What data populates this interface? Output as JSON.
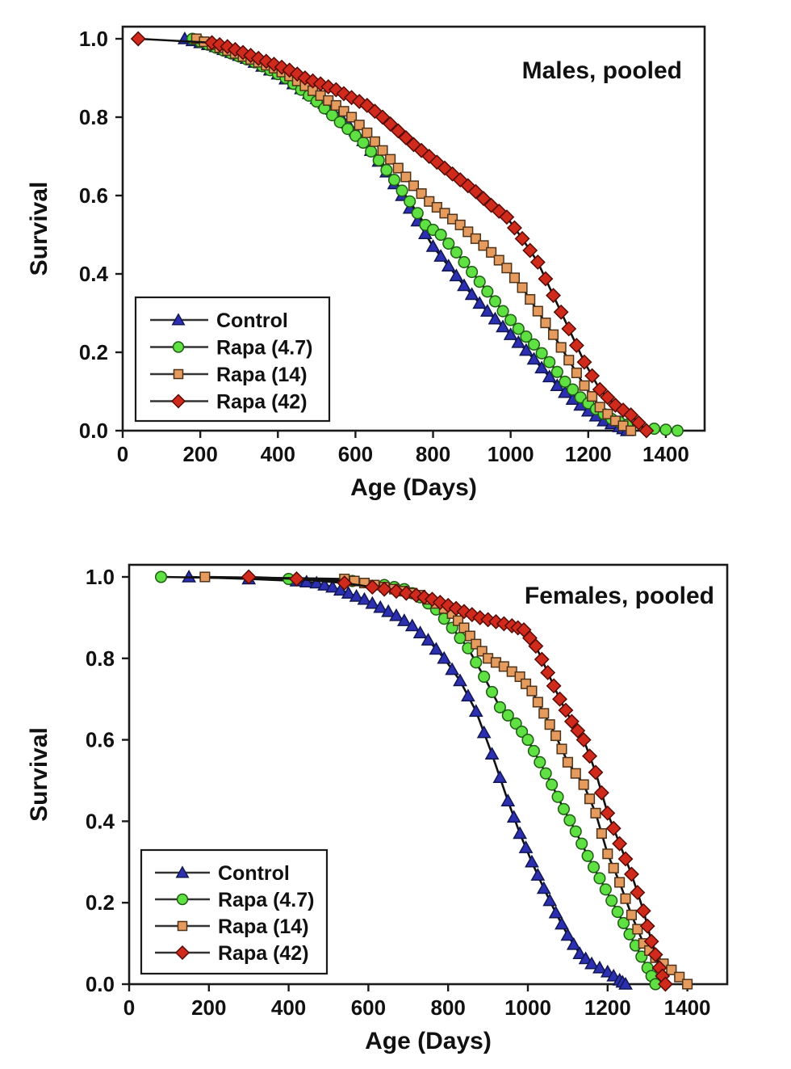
{
  "figure": {
    "background": "#ffffff",
    "axis_color": "#1a1a1a",
    "line_color": "#111111"
  },
  "chart_data": [
    {
      "type": "line",
      "subtype": "survival-curve",
      "title": "Males, pooled",
      "xlabel": "Age (Days)",
      "ylabel": "Survival",
      "xlim": [
        0,
        1500
      ],
      "ylim": [
        0.0,
        1.0
      ],
      "xticks": [
        0,
        200,
        400,
        600,
        800,
        1000,
        1200,
        1400
      ],
      "yticks": [
        "0.0",
        "0.2",
        "0.4",
        "0.6",
        "0.8",
        "1.0"
      ],
      "grid": false,
      "legend_position": "lower-left",
      "legend": [
        "Control",
        "Rapa (4.7)",
        "Rapa (14)",
        "Rapa (42)"
      ],
      "series": [
        {
          "name": "Control",
          "marker": "triangle",
          "fill": "#2b2fb0",
          "edge": "#101650",
          "points": [
            [
              160,
              1.0
            ],
            [
              200,
              0.99
            ],
            [
              240,
              0.98
            ],
            [
              280,
              0.965
            ],
            [
              320,
              0.95
            ],
            [
              360,
              0.93
            ],
            [
              400,
              0.91
            ],
            [
              440,
              0.885
            ],
            [
              480,
              0.86
            ],
            [
              520,
              0.835
            ],
            [
              560,
              0.805
            ],
            [
              600,
              0.765
            ],
            [
              640,
              0.715
            ],
            [
              680,
              0.66
            ],
            [
              720,
              0.6
            ],
            [
              760,
              0.535
            ],
            [
              800,
              0.47
            ],
            [
              840,
              0.42
            ],
            [
              880,
              0.37
            ],
            [
              920,
              0.325
            ],
            [
              960,
              0.285
            ],
            [
              1000,
              0.245
            ],
            [
              1040,
              0.205
            ],
            [
              1080,
              0.16
            ],
            [
              1120,
              0.115
            ],
            [
              1160,
              0.08
            ],
            [
              1200,
              0.05
            ],
            [
              1240,
              0.025
            ],
            [
              1280,
              0.01
            ],
            [
              1300,
              0.0
            ]
          ]
        },
        {
          "name": "Rapa (4.7)",
          "marker": "circle",
          "fill": "#5fe043",
          "edge": "#1e5c14",
          "points": [
            [
              180,
              1.0
            ],
            [
              220,
              0.985
            ],
            [
              260,
              0.97
            ],
            [
              300,
              0.955
            ],
            [
              340,
              0.94
            ],
            [
              380,
              0.92
            ],
            [
              420,
              0.9
            ],
            [
              460,
              0.87
            ],
            [
              500,
              0.84
            ],
            [
              540,
              0.805
            ],
            [
              580,
              0.77
            ],
            [
              620,
              0.735
            ],
            [
              660,
              0.69
            ],
            [
              700,
              0.64
            ],
            [
              740,
              0.585
            ],
            [
              780,
              0.525
            ],
            [
              820,
              0.5
            ],
            [
              860,
              0.455
            ],
            [
              900,
              0.405
            ],
            [
              940,
              0.355
            ],
            [
              980,
              0.305
            ],
            [
              1020,
              0.26
            ],
            [
              1060,
              0.22
            ],
            [
              1100,
              0.175
            ],
            [
              1140,
              0.125
            ],
            [
              1180,
              0.085
            ],
            [
              1220,
              0.055
            ],
            [
              1260,
              0.03
            ],
            [
              1300,
              0.015
            ],
            [
              1370,
              0.005
            ],
            [
              1430,
              0.0
            ]
          ]
        },
        {
          "name": "Rapa (14)",
          "marker": "square",
          "fill": "#e59a5e",
          "edge": "#4d3319",
          "points": [
            [
              190,
              1.0
            ],
            [
              230,
              0.985
            ],
            [
              270,
              0.97
            ],
            [
              310,
              0.955
            ],
            [
              350,
              0.94
            ],
            [
              390,
              0.925
            ],
            [
              430,
              0.905
            ],
            [
              470,
              0.88
            ],
            [
              510,
              0.855
            ],
            [
              550,
              0.83
            ],
            [
              590,
              0.8
            ],
            [
              630,
              0.76
            ],
            [
              670,
              0.715
            ],
            [
              710,
              0.67
            ],
            [
              750,
              0.625
            ],
            [
              790,
              0.585
            ],
            [
              830,
              0.555
            ],
            [
              870,
              0.525
            ],
            [
              910,
              0.49
            ],
            [
              950,
              0.455
            ],
            [
              990,
              0.415
            ],
            [
              1030,
              0.365
            ],
            [
              1070,
              0.305
            ],
            [
              1110,
              0.245
            ],
            [
              1150,
              0.18
            ],
            [
              1190,
              0.115
            ],
            [
              1230,
              0.06
            ],
            [
              1270,
              0.025
            ],
            [
              1310,
              0.0
            ]
          ]
        },
        {
          "name": "Rapa (42)",
          "marker": "diamond",
          "fill": "#cf2a1b",
          "edge": "#550b06",
          "points": [
            [
              40,
              1.0
            ],
            [
              230,
              0.99
            ],
            [
              270,
              0.98
            ],
            [
              310,
              0.965
            ],
            [
              350,
              0.95
            ],
            [
              390,
              0.935
            ],
            [
              430,
              0.92
            ],
            [
              470,
              0.9
            ],
            [
              510,
              0.885
            ],
            [
              550,
              0.87
            ],
            [
              590,
              0.85
            ],
            [
              630,
              0.83
            ],
            [
              670,
              0.8
            ],
            [
              710,
              0.765
            ],
            [
              750,
              0.73
            ],
            [
              790,
              0.7
            ],
            [
              830,
              0.67
            ],
            [
              870,
              0.64
            ],
            [
              910,
              0.61
            ],
            [
              950,
              0.575
            ],
            [
              990,
              0.545
            ],
            [
              1030,
              0.49
            ],
            [
              1070,
              0.43
            ],
            [
              1110,
              0.345
            ],
            [
              1150,
              0.26
            ],
            [
              1190,
              0.175
            ],
            [
              1230,
              0.105
            ],
            [
              1270,
              0.065
            ],
            [
              1310,
              0.04
            ],
            [
              1350,
              0.0
            ]
          ]
        }
      ]
    },
    {
      "type": "line",
      "subtype": "survival-curve",
      "title": "Females, pooled",
      "xlabel": "Age (Days)",
      "ylabel": "Survival",
      "xlim": [
        0,
        1500
      ],
      "ylim": [
        0.0,
        1.0
      ],
      "xticks": [
        0,
        200,
        400,
        600,
        800,
        1000,
        1200,
        1400
      ],
      "yticks": [
        "0.0",
        "0.2",
        "0.4",
        "0.6",
        "0.8",
        "1.0"
      ],
      "grid": false,
      "legend_position": "lower-left",
      "legend": [
        "Control",
        "Rapa (4.7)",
        "Rapa (14)",
        "Rapa (42)"
      ],
      "series": [
        {
          "name": "Control",
          "marker": "triangle",
          "fill": "#2b2fb0",
          "edge": "#101650",
          "points": [
            [
              150,
              1.0
            ],
            [
              300,
              0.995
            ],
            [
              420,
              0.99
            ],
            [
              470,
              0.985
            ],
            [
              510,
              0.975
            ],
            [
              550,
              0.96
            ],
            [
              590,
              0.945
            ],
            [
              630,
              0.925
            ],
            [
              670,
              0.905
            ],
            [
              710,
              0.88
            ],
            [
              750,
              0.845
            ],
            [
              790,
              0.8
            ],
            [
              830,
              0.745
            ],
            [
              870,
              0.67
            ],
            [
              910,
              0.565
            ],
            [
              950,
              0.45
            ],
            [
              980,
              0.37
            ],
            [
              1010,
              0.3
            ],
            [
              1040,
              0.235
            ],
            [
              1070,
              0.175
            ],
            [
              1100,
              0.12
            ],
            [
              1130,
              0.075
            ],
            [
              1160,
              0.05
            ],
            [
              1200,
              0.03
            ],
            [
              1230,
              0.01
            ],
            [
              1245,
              0.0
            ]
          ]
        },
        {
          "name": "Rapa (4.7)",
          "marker": "circle",
          "fill": "#5fe043",
          "edge": "#1e5c14",
          "points": [
            [
              80,
              1.0
            ],
            [
              400,
              0.995
            ],
            [
              560,
              0.99
            ],
            [
              640,
              0.98
            ],
            [
              690,
              0.97
            ],
            [
              730,
              0.95
            ],
            [
              770,
              0.92
            ],
            [
              810,
              0.875
            ],
            [
              850,
              0.825
            ],
            [
              890,
              0.755
            ],
            [
              930,
              0.68
            ],
            [
              970,
              0.64
            ],
            [
              1000,
              0.6
            ],
            [
              1030,
              0.545
            ],
            [
              1060,
              0.49
            ],
            [
              1090,
              0.43
            ],
            [
              1120,
              0.375
            ],
            [
              1150,
              0.315
            ],
            [
              1180,
              0.26
            ],
            [
              1210,
              0.205
            ],
            [
              1240,
              0.15
            ],
            [
              1270,
              0.095
            ],
            [
              1300,
              0.04
            ],
            [
              1320,
              0.0
            ]
          ]
        },
        {
          "name": "Rapa (14)",
          "marker": "square",
          "fill": "#e59a5e",
          "edge": "#4d3319",
          "points": [
            [
              190,
              1.0
            ],
            [
              540,
              0.995
            ],
            [
              590,
              0.985
            ],
            [
              640,
              0.975
            ],
            [
              690,
              0.965
            ],
            [
              730,
              0.955
            ],
            [
              770,
              0.935
            ],
            [
              810,
              0.91
            ],
            [
              840,
              0.875
            ],
            [
              870,
              0.835
            ],
            [
              900,
              0.8
            ],
            [
              940,
              0.78
            ],
            [
              980,
              0.755
            ],
            [
              1010,
              0.72
            ],
            [
              1040,
              0.665
            ],
            [
              1070,
              0.61
            ],
            [
              1100,
              0.545
            ],
            [
              1140,
              0.49
            ],
            [
              1170,
              0.42
            ],
            [
              1200,
              0.32
            ],
            [
              1230,
              0.25
            ],
            [
              1260,
              0.17
            ],
            [
              1290,
              0.1
            ],
            [
              1320,
              0.065
            ],
            [
              1360,
              0.035
            ],
            [
              1400,
              0.0
            ]
          ]
        },
        {
          "name": "Rapa (42)",
          "marker": "diamond",
          "fill": "#cf2a1b",
          "edge": "#550b06",
          "points": [
            [
              300,
              1.0
            ],
            [
              420,
              0.995
            ],
            [
              540,
              0.985
            ],
            [
              610,
              0.975
            ],
            [
              670,
              0.965
            ],
            [
              720,
              0.955
            ],
            [
              760,
              0.945
            ],
            [
              800,
              0.93
            ],
            [
              840,
              0.915
            ],
            [
              880,
              0.9
            ],
            [
              920,
              0.89
            ],
            [
              960,
              0.88
            ],
            [
              990,
              0.87
            ],
            [
              1020,
              0.83
            ],
            [
              1050,
              0.765
            ],
            [
              1080,
              0.7
            ],
            [
              1110,
              0.645
            ],
            [
              1140,
              0.6
            ],
            [
              1170,
              0.52
            ],
            [
              1200,
              0.42
            ],
            [
              1230,
              0.345
            ],
            [
              1260,
              0.27
            ],
            [
              1290,
              0.18
            ],
            [
              1310,
              0.105
            ],
            [
              1330,
              0.04
            ],
            [
              1345,
              0.0
            ]
          ]
        }
      ]
    }
  ]
}
